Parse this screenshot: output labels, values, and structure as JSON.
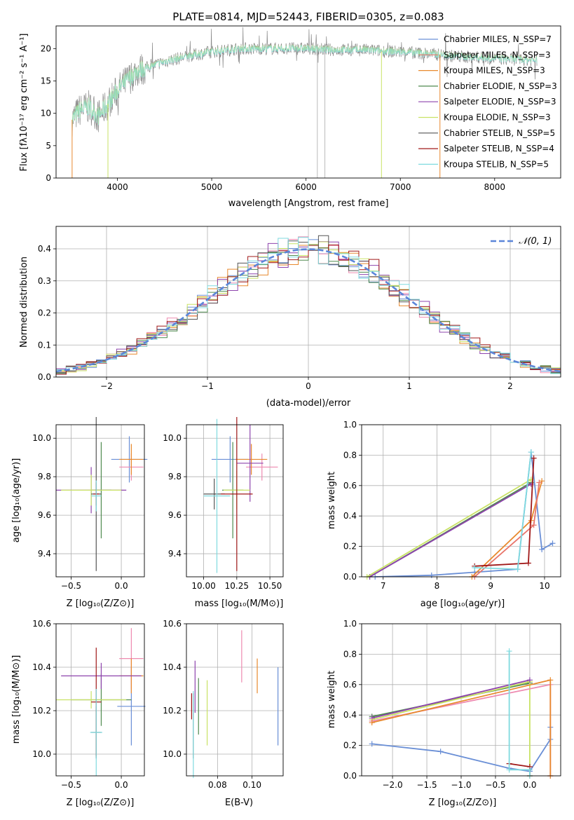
{
  "chart_data": [
    {
      "type": "line",
      "title": "PLATE=0814, MJD=52443, FIBERID=0305, z=0.083",
      "xlabel": "wavelength [Angstrom, rest frame]",
      "ylabel": "Flux [fλ10⁻¹⁷ erg cm⁻² s⁻¹ A⁻¹]",
      "xlim": [
        3350,
        8700
      ],
      "ylim": [
        0,
        23.5
      ],
      "xticks": [
        4000,
        5000,
        6000,
        7000,
        8000
      ],
      "yticks": [
        0,
        5,
        10,
        15,
        20
      ],
      "grid": false,
      "legend_position": "right",
      "series": [
        {
          "name": "Chabrier MILES, N_SSP=7",
          "color": "#6a8fd6"
        },
        {
          "name": "Salpeter MILES, N_SSP=3",
          "color": "#e8746a"
        },
        {
          "name": "Kroupa MILES, N_SSP=3",
          "color": "#e8892e"
        },
        {
          "name": "Chabrier ELODIE, N_SSP=3",
          "color": "#4f8a4f"
        },
        {
          "name": "Salpeter ELODIE, N_SSP=3",
          "color": "#8e44ad"
        },
        {
          "name": "Kroupa ELODIE, N_SSP=3",
          "color": "#c9e265"
        },
        {
          "name": "Chabrier STELIB, N_SSP=5",
          "color": "#555555"
        },
        {
          "name": "Salpeter STELIB, N_SSP=4",
          "color": "#a01818"
        },
        {
          "name": "Kroupa STELIB, N_SSP=5",
          "color": "#7fdadf"
        }
      ],
      "continuum": {
        "x": [
          3520,
          3600,
          3700,
          3800,
          3900,
          4000,
          4100,
          4200,
          4300,
          4500,
          4800,
          5000,
          5300,
          5600,
          6000,
          6300,
          6600,
          7000,
          7300,
          7600,
          8000,
          8450
        ],
        "y": [
          9,
          10.5,
          11,
          9.5,
          11.5,
          13.5,
          15,
          16.5,
          17,
          18,
          19,
          19.5,
          20,
          20,
          20,
          19.8,
          19.8,
          19.5,
          19.2,
          18.8,
          18.5,
          18.2
        ]
      }
    },
    {
      "type": "histogram",
      "xlabel": "(data-model)/error",
      "ylabel": "Normed distribution",
      "xlim": [
        -2.5,
        2.5
      ],
      "ylim": [
        0,
        0.47
      ],
      "xticks": [
        -2,
        -1,
        0,
        1,
        2
      ],
      "yticks": [
        0.0,
        0.1,
        0.2,
        0.3,
        0.4
      ],
      "grid": true,
      "legend": "𝒩(0, 1)",
      "reference_curve": "normal(0,1)"
    },
    {
      "type": "scatter",
      "xlabel": "Z [log₁₀(Z/Z⊙)]",
      "ylabel": "age  [log₁₀(age/yr)]",
      "xlim": [
        -0.65,
        0.23
      ],
      "ylim": [
        9.28,
        10.07
      ],
      "xticks": [
        -0.5,
        0.0
      ],
      "yticks": [
        9.4,
        9.6,
        9.8,
        10.0
      ],
      "grid": true,
      "points": [
        {
          "x": 0.08,
          "y": 9.89,
          "xerr": 0.18,
          "yerr": 0.12,
          "color": "#6a8fd6"
        },
        {
          "x": 0.1,
          "y": 9.85,
          "xerr": 0.12,
          "yerr": 0.07,
          "color": "#ee8ab0"
        },
        {
          "x": 0.1,
          "y": 9.89,
          "xerr": 0.12,
          "yerr": 0.08,
          "color": "#e8892e"
        },
        {
          "x": -0.2,
          "y": 9.73,
          "xerr": 0.1,
          "yerr": 0.25,
          "color": "#4f8a4f"
        },
        {
          "x": -0.3,
          "y": 9.73,
          "xerr": 0.35,
          "yerr": 0.12,
          "color": "#8e44ad"
        },
        {
          "x": -0.3,
          "y": 9.73,
          "xerr": 0.3,
          "yerr": 0.08,
          "color": "#c9e265"
        },
        {
          "x": -0.25,
          "y": 9.71,
          "xerr": 0.05,
          "yerr": 0.4,
          "color": "#555555"
        },
        {
          "x": -0.25,
          "y": 9.71,
          "xerr": 0.03,
          "yerr": 0.06,
          "color": "#a01818"
        },
        {
          "x": -0.25,
          "y": 9.7,
          "xerr": 0.05,
          "yerr": 0.08,
          "color": "#7fdadf"
        }
      ]
    },
    {
      "type": "scatter",
      "xlabel": "mass [log₁₀(M/M⊙)]",
      "ylabel": "",
      "xlim": [
        9.87,
        10.6
      ],
      "ylim": [
        9.28,
        10.07
      ],
      "xticks": [
        10.0,
        10.25,
        10.5
      ],
      "yticks": [
        9.4,
        9.6,
        9.8,
        10.0
      ],
      "grid": true,
      "points": [
        {
          "x": 10.2,
          "y": 9.89,
          "xerr": 0.14,
          "yerr": 0.12,
          "color": "#6a8fd6"
        },
        {
          "x": 10.44,
          "y": 9.85,
          "xerr": 0.12,
          "yerr": 0.07,
          "color": "#ee8ab0"
        },
        {
          "x": 10.36,
          "y": 9.89,
          "xerr": 0.12,
          "yerr": 0.08,
          "color": "#e8892e"
        },
        {
          "x": 10.22,
          "y": 9.73,
          "xerr": 0.08,
          "yerr": 0.25,
          "color": "#4f8a4f"
        },
        {
          "x": 10.35,
          "y": 9.87,
          "xerr": 0.1,
          "yerr": 0.2,
          "color": "#8e44ad"
        },
        {
          "x": 10.25,
          "y": 9.73,
          "xerr": 0.1,
          "yerr": 0.1,
          "color": "#c9e265"
        },
        {
          "x": 10.08,
          "y": 9.71,
          "xerr": 0.08,
          "yerr": 0.08,
          "color": "#555555"
        },
        {
          "x": 10.25,
          "y": 9.71,
          "xerr": 0.12,
          "yerr": 0.4,
          "color": "#a01818"
        },
        {
          "x": 10.1,
          "y": 9.7,
          "xerr": 0.1,
          "yerr": 0.4,
          "color": "#7fdadf"
        }
      ]
    },
    {
      "type": "line",
      "xlabel": "age  [log₁₀(age/yr)]",
      "ylabel": "mass weight",
      "xlim": [
        6.6,
        10.3
      ],
      "ylim": [
        0,
        1.0
      ],
      "xticks": [
        7,
        8,
        9,
        10
      ],
      "yticks": [
        0.0,
        0.2,
        0.4,
        0.6,
        0.8,
        1.0
      ],
      "grid": true,
      "series": [
        {
          "color": "#6a8fd6",
          "x": [
            6.85,
            7.9,
            8.7,
            9.5,
            9.75,
            9.95,
            10.15
          ],
          "y": [
            0.0,
            0.01,
            0.03,
            0.05,
            0.82,
            0.18,
            0.22
          ]
        },
        {
          "color": "#e8892e",
          "x": [
            8.65,
            9.75,
            9.95
          ],
          "y": [
            0.0,
            0.37,
            0.63
          ]
        },
        {
          "color": "#e8746a",
          "x": [
            8.7,
            9.8,
            9.9
          ],
          "y": [
            0.0,
            0.34,
            0.62
          ]
        },
        {
          "color": "#4f8a4f",
          "x": [
            6.75,
            9.75
          ],
          "y": [
            0.0,
            0.62
          ]
        },
        {
          "color": "#8e44ad",
          "x": [
            6.75,
            9.75
          ],
          "y": [
            0.0,
            0.61
          ]
        },
        {
          "color": "#c9e265",
          "x": [
            6.7,
            9.75
          ],
          "y": [
            0.0,
            0.64
          ]
        },
        {
          "color": "#a01818",
          "x": [
            8.7,
            9.7,
            9.8
          ],
          "y": [
            0.07,
            0.09,
            0.78
          ]
        },
        {
          "color": "#7fdadf",
          "x": [
            8.7,
            9.5,
            9.75
          ],
          "y": [
            0.06,
            0.05,
            0.82
          ]
        }
      ]
    },
    {
      "type": "scatter",
      "xlabel": "Z [log₁₀(Z/Z⊙)]",
      "ylabel": "mass [log₁₀(M/M⊙)]",
      "xlim": [
        -0.65,
        0.23
      ],
      "ylim": [
        9.9,
        10.6
      ],
      "xticks": [
        -0.5,
        0.0
      ],
      "yticks": [
        10.0,
        10.2,
        10.4,
        10.6
      ],
      "grid": true,
      "points": [
        {
          "x": 0.1,
          "y": 10.22,
          "xerr": 0.14,
          "yerr": 0.18,
          "color": "#6a8fd6"
        },
        {
          "x": 0.1,
          "y": 10.44,
          "xerr": 0.12,
          "yerr": 0.14,
          "color": "#ee8ab0"
        },
        {
          "x": 0.1,
          "y": 10.36,
          "xerr": 0.12,
          "yerr": 0.08,
          "color": "#e8892e"
        },
        {
          "x": -0.2,
          "y": 10.25,
          "xerr": 0.3,
          "yerr": 0.12,
          "color": "#4f8a4f"
        },
        {
          "x": -0.2,
          "y": 10.36,
          "xerr": 0.4,
          "yerr": 0.06,
          "color": "#8e44ad"
        },
        {
          "x": -0.3,
          "y": 10.25,
          "xerr": 0.35,
          "yerr": 0.04,
          "color": "#c9e265"
        },
        {
          "x": -0.25,
          "y": 10.1,
          "xerr": 0.05,
          "yerr": 0.12,
          "color": "#555555"
        },
        {
          "x": -0.25,
          "y": 10.24,
          "xerr": 0.05,
          "yerr": 0.25,
          "color": "#a01818"
        },
        {
          "x": -0.25,
          "y": 10.1,
          "xerr": 0.06,
          "yerr": 0.2,
          "color": "#7fdadf"
        }
      ]
    },
    {
      "type": "scatter",
      "xlabel": "E(B-V)",
      "ylabel": "",
      "xlim": [
        0.062,
        0.118
      ],
      "ylim": [
        9.9,
        10.6
      ],
      "xticks": [
        0.08,
        0.1
      ],
      "yticks": [
        10.0,
        10.2,
        10.4,
        10.6
      ],
      "grid": true,
      "points": [
        {
          "x": 0.115,
          "y": 10.22,
          "xerr": 0,
          "yerr": 0.18,
          "color": "#6a8fd6"
        },
        {
          "x": 0.094,
          "y": 10.45,
          "xerr": 0,
          "yerr": 0.12,
          "color": "#ee8ab0"
        },
        {
          "x": 0.103,
          "y": 10.36,
          "xerr": 0,
          "yerr": 0.08,
          "color": "#e8892e"
        },
        {
          "x": 0.069,
          "y": 10.22,
          "xerr": 0,
          "yerr": 0.13,
          "color": "#4f8a4f"
        },
        {
          "x": 0.067,
          "y": 10.31,
          "xerr": 0,
          "yerr": 0.12,
          "color": "#8e44ad"
        },
        {
          "x": 0.074,
          "y": 10.19,
          "xerr": 0,
          "yerr": 0.15,
          "color": "#c9e265"
        },
        {
          "x": 0.066,
          "y": 10.13,
          "xerr": 0,
          "yerr": 0.15,
          "color": "#555555"
        },
        {
          "x": 0.065,
          "y": 10.22,
          "xerr": 0,
          "yerr": 0.06,
          "color": "#a01818"
        },
        {
          "x": 0.066,
          "y": 10.09,
          "xerr": 0,
          "yerr": 0.2,
          "color": "#7fdadf"
        }
      ]
    },
    {
      "type": "line",
      "xlabel": "Z [log₁₀(Z/Z⊙)]",
      "ylabel": "mass weight",
      "xlim": [
        -2.45,
        0.45
      ],
      "ylim": [
        0,
        1.0
      ],
      "xticks": [
        -2.0,
        -1.5,
        -1.0,
        -0.5,
        0.0
      ],
      "yticks": [
        0.0,
        0.2,
        0.4,
        0.6,
        0.8,
        1.0
      ],
      "grid": true,
      "series": [
        {
          "color": "#6a8fd6",
          "x": [
            -2.3,
            -1.3,
            -0.3,
            0.0,
            0.3,
            0.3
          ],
          "y": [
            0.21,
            0.16,
            0.05,
            0.03,
            0.24,
            0.32
          ]
        },
        {
          "color": "#4f8a4f",
          "x": [
            -2.3,
            0.0
          ],
          "y": [
            0.39,
            0.61
          ]
        },
        {
          "color": "#c9e265",
          "x": [
            -2.3,
            0.0,
            0.0
          ],
          "y": [
            0.37,
            0.62,
            0.0
          ]
        },
        {
          "color": "#8e44ad",
          "x": [
            -2.3,
            0.0
          ],
          "y": [
            0.38,
            0.63
          ]
        },
        {
          "color": "#ee8ab0",
          "x": [
            -2.3,
            0.3,
            0.3
          ],
          "y": [
            0.36,
            0.6,
            0.0
          ]
        },
        {
          "color": "#e8892e",
          "x": [
            -2.3,
            0.3,
            0.3
          ],
          "y": [
            0.35,
            0.63,
            0.0
          ]
        },
        {
          "color": "#a01818",
          "x": [
            -0.3,
            0.0,
            0.0
          ],
          "y": [
            0.08,
            0.06,
            0.0
          ]
        },
        {
          "color": "#7fdadf",
          "x": [
            -0.3,
            -0.3,
            0.0,
            0.0
          ],
          "y": [
            0.82,
            0.04,
            0.04,
            0.0
          ]
        }
      ]
    }
  ]
}
